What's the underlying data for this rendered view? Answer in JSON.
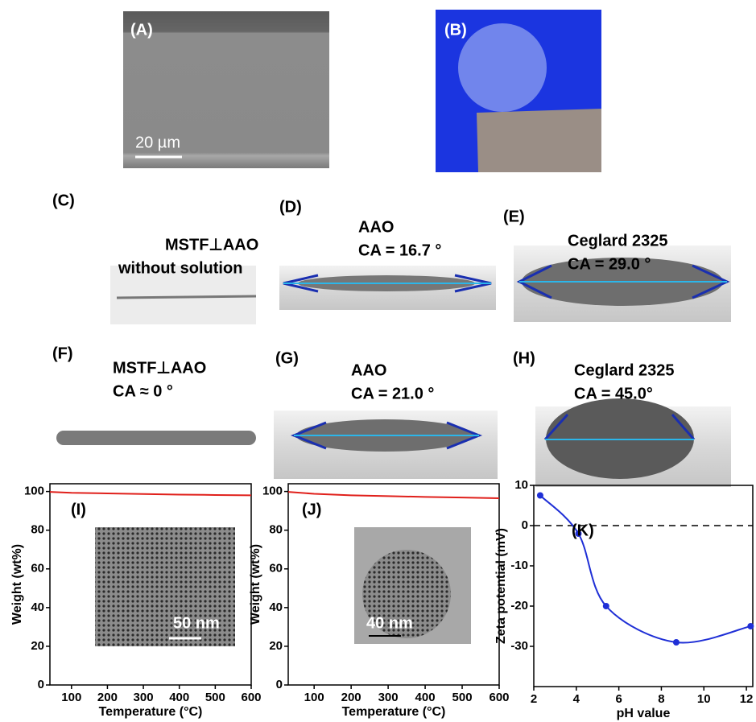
{
  "panels": [
    {
      "label": "(A)",
      "scale_bar": "20 µm"
    },
    {
      "label": "(B)"
    },
    {
      "label": "(C)",
      "lines": [
        "MSTF⊥AAO",
        "without solution"
      ]
    },
    {
      "label": "(D)",
      "lines": [
        "AAO",
        "CA = 16.7 °"
      ]
    },
    {
      "label": "(E)",
      "lines": [
        "Ceglard 2325",
        "CA = 29.0 °"
      ]
    },
    {
      "label": "(F)",
      "lines": [
        "MSTF⊥AAO",
        "CA ≈ 0 °"
      ]
    },
    {
      "label": "(G)",
      "lines": [
        "AAO",
        "CA = 21.0 °"
      ]
    },
    {
      "label": "(H)",
      "lines": [
        "Ceglard 2325",
        "CA = 45.0°"
      ]
    }
  ],
  "chart_data": [
    {
      "type": "line",
      "label": "(I)",
      "inset_scale": "50 nm",
      "x_label": "Temperature (°C)",
      "y_label": "Weight (wt%)",
      "x": [
        40,
        100,
        200,
        300,
        400,
        500,
        600
      ],
      "series": [
        {
          "color": "#e0201b",
          "values": [
            99.8,
            99.3,
            99,
            98.7,
            98.4,
            98.2,
            98
          ]
        }
      ],
      "xlim": [
        40,
        600
      ],
      "xticks": [
        100,
        200,
        300,
        400,
        500,
        600
      ],
      "ylim": [
        0,
        104
      ],
      "yticks": [
        0,
        20,
        40,
        60,
        80,
        100
      ]
    },
    {
      "type": "line",
      "label": "(J)",
      "inset_scale": "40 nm",
      "x_label": "Temperature (°C)",
      "y_label": "Weight (wt%)",
      "x": [
        30,
        100,
        200,
        300,
        400,
        500,
        600
      ],
      "series": [
        {
          "color": "#e0201b",
          "values": [
            99.8,
            98.8,
            98,
            97.6,
            97.2,
            96.9,
            96.5
          ]
        }
      ],
      "xlim": [
        30,
        600
      ],
      "xticks": [
        100,
        200,
        300,
        400,
        500,
        600
      ],
      "ylim": [
        0,
        104
      ],
      "yticks": [
        0,
        20,
        40,
        60,
        80,
        100
      ]
    },
    {
      "type": "smooth-line",
      "label": "(K)",
      "x_label": "pH value",
      "y_label": "Zeta potential (mV)",
      "x": [
        2.3,
        4.1,
        5.4,
        8.7,
        12.2
      ],
      "series": [
        {
          "color": "#1f2fd6",
          "values": [
            7.5,
            -2,
            -20,
            -29,
            -25
          ]
        }
      ],
      "reference_line": 0,
      "xlim": [
        2,
        12.3
      ],
      "xticks": [
        2,
        4,
        6,
        8,
        10,
        12
      ],
      "ylim": [
        -40,
        10
      ],
      "yticks": [
        -30,
        -20,
        -10,
        0,
        10
      ]
    }
  ]
}
